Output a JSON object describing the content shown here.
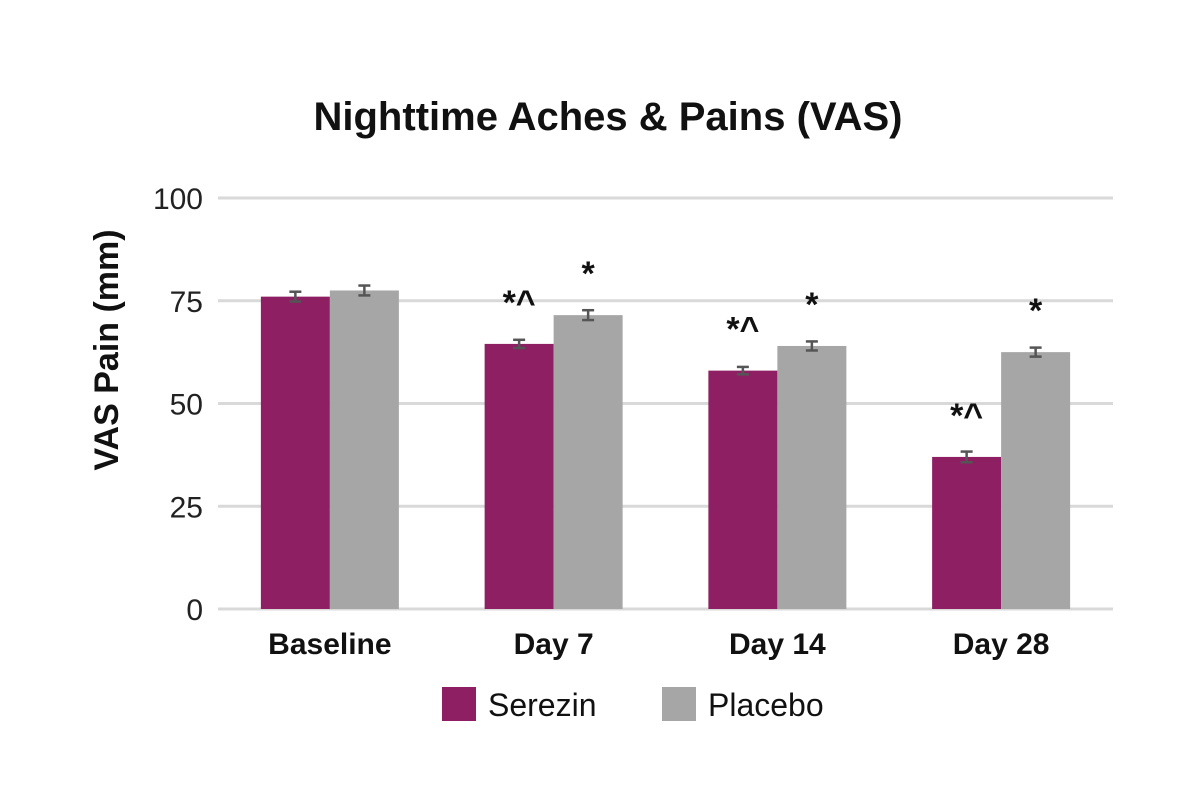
{
  "chart_data": {
    "type": "bar",
    "title": "Nighttime Aches & Pains (VAS)",
    "xlabel": "",
    "ylabel": "VAS Pain (mm)",
    "ylim": [
      0,
      100
    ],
    "yticks": [
      "0",
      "25",
      "50",
      "75",
      "100"
    ],
    "ytick_values": [
      0,
      25,
      50,
      75,
      100
    ],
    "grid": true,
    "legend_position": "bottom",
    "categories": [
      "Baseline",
      "Day 7",
      "Day 14",
      "Day 28"
    ],
    "series": [
      {
        "name": "Serezin",
        "color": "#8e1f63",
        "values": [
          76,
          64.5,
          58,
          37
        ],
        "errors": [
          1.2,
          1.0,
          0.9,
          1.3
        ],
        "annotations": [
          "",
          "*^",
          "*^",
          "*^"
        ]
      },
      {
        "name": "Placebo",
        "color": "#a6a6a6",
        "values": [
          77.5,
          71.5,
          64,
          62.5
        ],
        "errors": [
          1.2,
          1.2,
          1.1,
          1.1
        ],
        "annotations": [
          "",
          "*",
          "*",
          "*"
        ]
      }
    ]
  }
}
